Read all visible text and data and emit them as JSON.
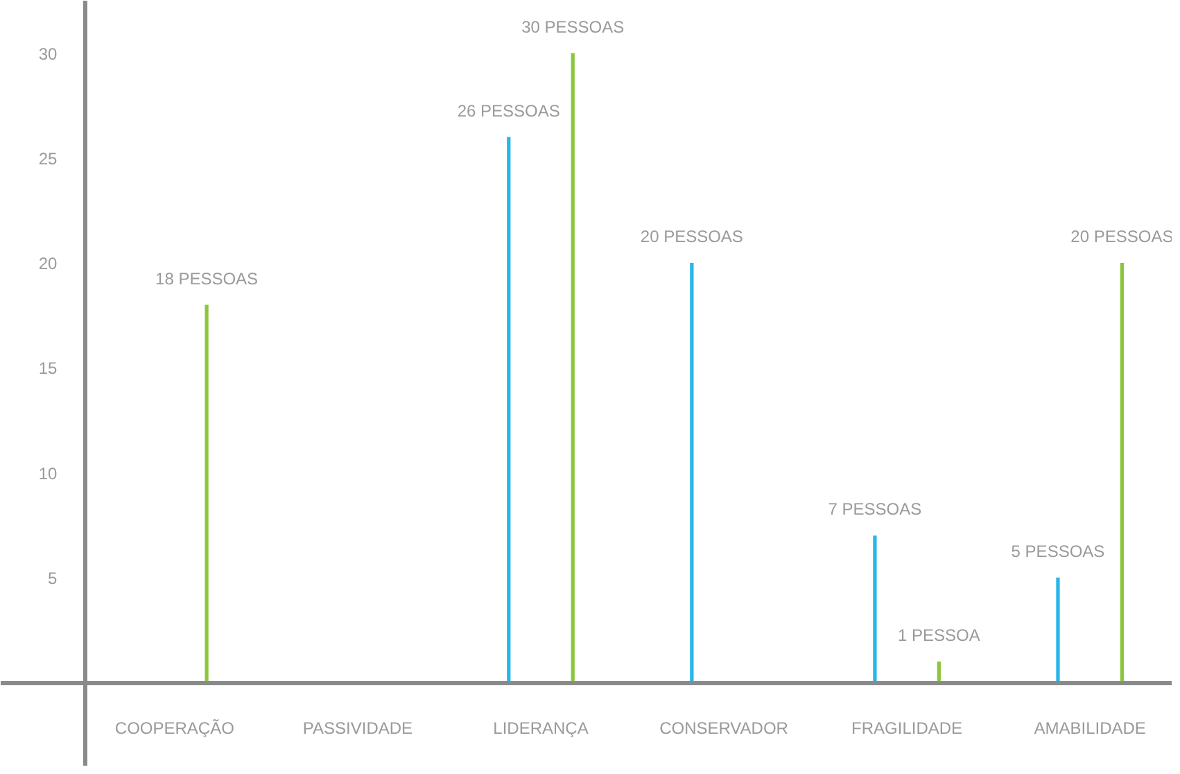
{
  "chart_data": {
    "type": "bar",
    "categories": [
      "COOPERAÇÃO",
      "PASSIVIDADE",
      "LIDERANÇA",
      "CONSERVADOR",
      "FRAGILIDADE",
      "AMABILIDADE"
    ],
    "series": [
      {
        "color": "#29b6e8",
        "values": [
          null,
          null,
          26,
          20,
          7,
          5
        ],
        "value_labels": [
          null,
          null,
          "26 PESSOAS",
          "20 PESSOAS",
          "7 PESSOAS",
          "5 PESSOAS"
        ]
      },
      {
        "color": "#8cc63f",
        "values": [
          18,
          null,
          30,
          null,
          1,
          20
        ],
        "value_labels": [
          "18 PESSOAS",
          null,
          "30 PESSOAS",
          null,
          "1 PESSOA",
          "20 PESSOAS"
        ]
      }
    ],
    "ylim": [
      -4,
      32.5
    ],
    "yticks": [
      5,
      10,
      15,
      20,
      25,
      30
    ],
    "grid": false
  }
}
